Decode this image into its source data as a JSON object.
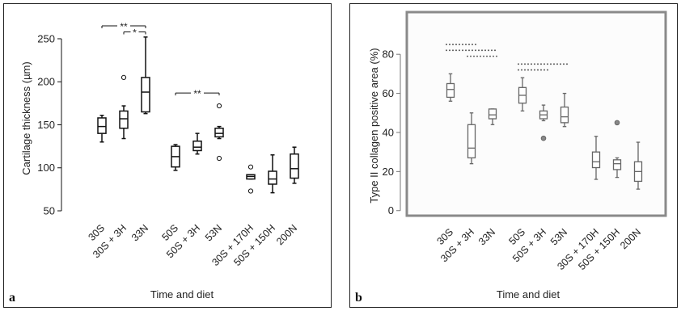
{
  "chart_data": [
    {
      "type": "box",
      "panel_label": "a",
      "title": "",
      "xlabel": "Time and diet",
      "ylabel": "Cartilage thickness (µm)",
      "ylim": [
        50,
        265
      ],
      "yticks": [
        50,
        100,
        150,
        200,
        250
      ],
      "grid": false,
      "categories": [
        "30S",
        "30S + 3H",
        "33N",
        "50S",
        "50S + 3H",
        "53N",
        "30S + 170H",
        "50S + 150H",
        "200N"
      ],
      "groups": [
        [
          0,
          1,
          2
        ],
        [
          3,
          4,
          5
        ],
        [
          6,
          7,
          8
        ]
      ],
      "boxes": [
        {
          "min": 130,
          "q1": 140,
          "median": 148,
          "q3": 158,
          "max": 161,
          "outliers": []
        },
        {
          "min": 134,
          "q1": 146,
          "median": 157,
          "q3": 166,
          "max": 172,
          "outliers": [
            205
          ]
        },
        {
          "min": 163,
          "q1": 165,
          "median": 188,
          "q3": 205,
          "max": 252,
          "outliers": []
        },
        {
          "min": 97,
          "q1": 101,
          "median": 113,
          "q3": 125,
          "max": 127,
          "outliers": []
        },
        {
          "min": 116,
          "q1": 120,
          "median": 124,
          "q3": 131,
          "max": 140,
          "outliers": []
        },
        {
          "min": 134,
          "q1": 136,
          "median": 140,
          "q3": 146,
          "max": 148,
          "outliers": [
            111,
            172
          ]
        },
        {
          "min": 87,
          "q1": 87,
          "median": 90,
          "q3": 92,
          "max": 92,
          "outliers": [
            101,
            73
          ]
        },
        {
          "min": 71,
          "q1": 81,
          "median": 87,
          "q3": 96,
          "max": 115,
          "outliers": []
        },
        {
          "min": 82,
          "q1": 88,
          "median": 99,
          "q3": 116,
          "max": 124,
          "outliers": []
        }
      ],
      "significance": [
        {
          "from": 0,
          "to": 2,
          "label": "**",
          "y": 265
        },
        {
          "from": 1,
          "to": 2,
          "label": "*",
          "y": 258
        },
        {
          "from": 3,
          "to": 5,
          "label": "**",
          "y": 187
        }
      ]
    },
    {
      "type": "box",
      "panel_label": "b",
      "title": "",
      "xlabel": "Time and diet",
      "ylabel": "Type II collagen positive area (%)",
      "ylim": [
        -3,
        90
      ],
      "yticks": [
        0,
        20,
        40,
        60,
        80
      ],
      "grid": false,
      "categories": [
        "30S",
        "30S + 3H",
        "33N",
        "50S",
        "50S + 3H",
        "53N",
        "30S + 170H",
        "50S + 150H",
        "200N"
      ],
      "groups": [
        [
          0,
          1,
          2
        ],
        [
          3,
          4,
          5
        ],
        [
          6,
          7,
          8
        ]
      ],
      "boxes": [
        {
          "min": 56,
          "q1": 58,
          "median": 62,
          "q3": 65,
          "max": 70,
          "outliers": []
        },
        {
          "min": 24,
          "q1": 27,
          "median": 32,
          "q3": 44,
          "max": 50,
          "outliers": []
        },
        {
          "min": 44,
          "q1": 47,
          "median": 49,
          "q3": 52,
          "max": 52,
          "outliers": []
        },
        {
          "min": 51,
          "q1": 55,
          "median": 59,
          "q3": 63,
          "max": 68,
          "outliers": []
        },
        {
          "min": 46,
          "q1": 47,
          "median": 49,
          "q3": 51,
          "max": 54,
          "outliers": [
            37
          ]
        },
        {
          "min": 43,
          "q1": 45,
          "median": 48,
          "q3": 53,
          "max": 60,
          "outliers": []
        },
        {
          "min": 16,
          "q1": 22,
          "median": 25,
          "q3": 30,
          "max": 38,
          "outliers": []
        },
        {
          "min": 17,
          "q1": 21,
          "median": 24,
          "q3": 26,
          "max": 27,
          "outliers": [
            45
          ]
        },
        {
          "min": 11,
          "q1": 15,
          "median": 20,
          "q3": 25,
          "max": 35,
          "outliers": []
        }
      ],
      "significance_dashed": [
        {
          "from": 0,
          "to": 1,
          "y": 85
        },
        {
          "from": 0,
          "to": 2,
          "y": 82
        },
        {
          "from": 1,
          "to": 2,
          "y": 79
        },
        {
          "from": 3,
          "to": 5,
          "y": 75
        },
        {
          "from": 3,
          "to": 4,
          "y": 72
        }
      ]
    }
  ]
}
